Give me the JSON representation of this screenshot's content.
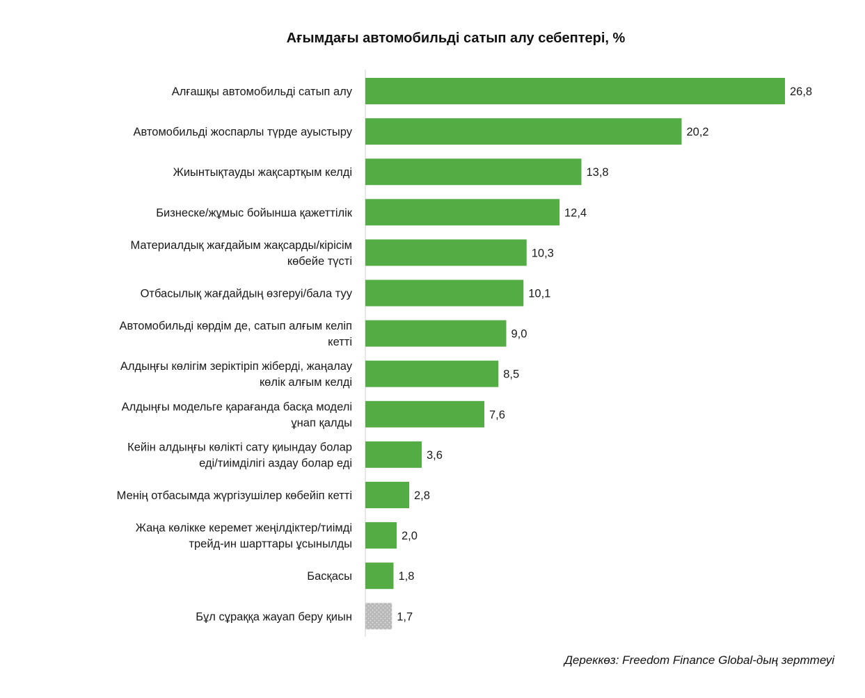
{
  "chart_data": {
    "type": "bar",
    "orientation": "horizontal",
    "title": "Ағымдағы автомобильді сатып алу себептері, %",
    "categories": [
      [
        "Алғашқы автомобильді сатып алу"
      ],
      [
        "Автомобильді жоспарлы түрде ауыстыру"
      ],
      [
        "Жиынтықтауды жақсартқым келді"
      ],
      [
        "Бизнеске/жұмыс бойынша қажеттілік"
      ],
      [
        "Материалдық жағдайым жақсарды/кірісім",
        "көбейе түсті"
      ],
      [
        "Отбасылық жағдайдың өзгеруі/бала туу"
      ],
      [
        "Автомобильді көрдім де, сатып алғым келіп",
        "кетті"
      ],
      [
        "Алдыңғы көлігім зеріктіріп жіберді, жаңалау",
        "көлік алғым келді"
      ],
      [
        "Алдыңғы модельге қарағанда басқа моделі",
        "ұнап қалды"
      ],
      [
        "Кейін алдыңғы көлікті сату қиындау болар",
        "еді/тиімділігі аздау болар еді"
      ],
      [
        "Менің отбасымда жүргізушілер көбейіп кетті"
      ],
      [
        "Жаңа көлікке керемет жеңілдіктер/тиімді",
        "трейд-ин шарттары ұсынылды"
      ],
      [
        "Басқасы"
      ],
      [
        "Бұл сұраққа жауап беру қиын"
      ]
    ],
    "values": [
      26.8,
      20.2,
      13.8,
      12.4,
      10.3,
      10.1,
      9.0,
      8.5,
      7.6,
      3.6,
      2.8,
      2.0,
      1.8,
      1.7
    ],
    "value_labels": [
      "26,8",
      "20,2",
      "13,8",
      "12,4",
      "10,3",
      "10,1",
      "9,0",
      "8,5",
      "7,6",
      "3,6",
      "2,8",
      "2,0",
      "1,8",
      "1,7"
    ],
    "bar_colors": [
      "#54ad44",
      "#54ad44",
      "#54ad44",
      "#54ad44",
      "#54ad44",
      "#54ad44",
      "#54ad44",
      "#54ad44",
      "#54ad44",
      "#54ad44",
      "#54ad44",
      "#54ad44",
      "#54ad44",
      "dotted-gray"
    ],
    "xlim": [
      0,
      27
    ],
    "grid": false,
    "legend": "none"
  },
  "colors": {
    "bar": "#54ad44",
    "bar_last": "#b5b5b5",
    "axis": "#d0d0d0"
  },
  "source": "Дереккөз: Freedom Finance Global-дың зерттеуі"
}
